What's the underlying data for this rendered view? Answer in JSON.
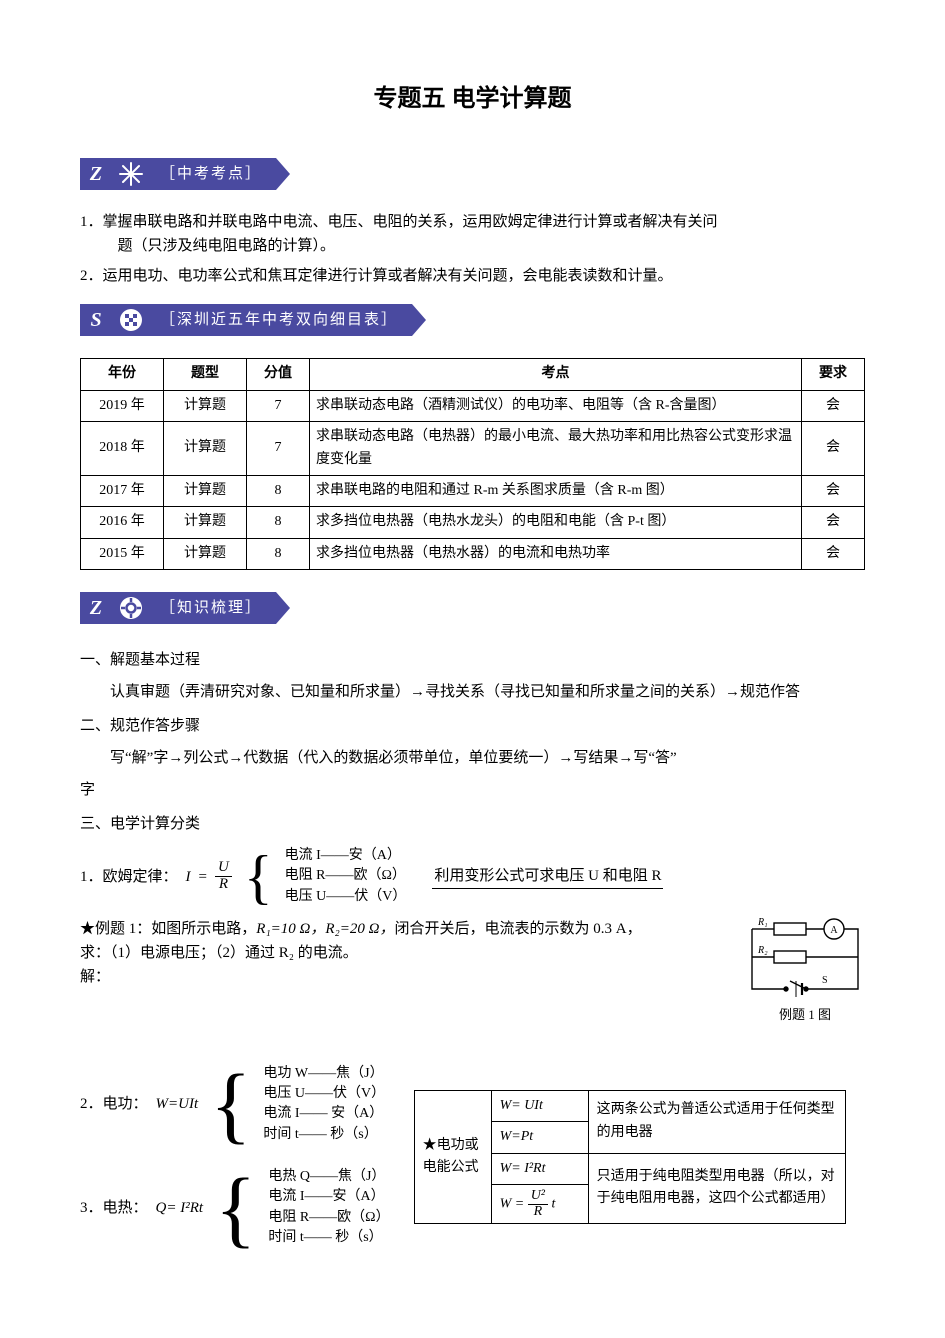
{
  "title": "专题五  电学计算题",
  "badge1": {
    "letter": "Z",
    "label": "［中考考点］"
  },
  "points": {
    "p1_num": "1．",
    "p1_a": "掌握串联电路和并联电路中电流、电压、电阻的关系，运用欧姆定律进行计算或者解决有关问",
    "p1_b": "题（只涉及纯电阻电路的计算）。",
    "p2_num": "2．",
    "p2": "运用电功、电功率公式和焦耳定律进行计算或者解决有关问题，会电能表读数和计量。"
  },
  "badge2": {
    "letter": "S",
    "label": "［深圳近五年中考双向细目表］"
  },
  "table": {
    "headers": [
      "年份",
      "题型",
      "分值",
      "考点",
      "要求"
    ],
    "rows": [
      {
        "year": "2019 年",
        "type": "计算题",
        "score": "7",
        "point": "求串联动态电路（酒精测试仪）的电功率、电阻等（含 R-含量图）",
        "req": "会"
      },
      {
        "year": "2018 年",
        "type": "计算题",
        "score": "7",
        "point": "求串联动态电路（电热器）的最小电流、最大热功率和用比热容公式变形求温度变化量",
        "req": "会"
      },
      {
        "year": "2017 年",
        "type": "计算题",
        "score": "8",
        "point": "求串联电路的电阻和通过 R-m 关系图求质量（含 R-m 图）",
        "req": "会"
      },
      {
        "year": "2016 年",
        "type": "计算题",
        "score": "8",
        "point": "求多挡位电热器（电热水龙头）的电阻和电能（含 P-t 图）",
        "req": "会"
      },
      {
        "year": "2015 年",
        "type": "计算题",
        "score": "8",
        "point": "求多挡位电热器（电热水器）的电流和电热功率",
        "req": "会"
      }
    ]
  },
  "badge3": {
    "letter": "Z",
    "label": "［知识梳理］"
  },
  "knowledge": {
    "h1": "一、解题基本过程",
    "h1_body": "认真审题（弄清研究对象、已知量和所求量）→寻找关系（寻找已知量和所求量之间的关系）→规范作答",
    "h2": "二、规范作答步骤",
    "h2_body_a": "写“解”字→列公式→代数据（代入的数据必须带单位，单位要统一）→写结果→写“答”",
    "h2_body_b": "字",
    "h3": "三、电学计算分类"
  },
  "ohm": {
    "lead": "1．欧姆定律：",
    "eq_lhs": "I",
    "eq_num": "U",
    "eq_den": "R",
    "defs": [
      "电流 I——安（A）",
      "电阻 R——欧（Ω）",
      "电压 U——伏（V）"
    ],
    "note": "利用变形公式可求电压 U 和电阻 R"
  },
  "example1": {
    "star": "★例题 1：",
    "body_a": "如图所示电路，",
    "r1": "R₁=10 Ω，",
    "r2": "R₂=20 Ω，",
    "body_b": "闭合开关后，电流表的示数为 0.3 A，",
    "q": "求：（1）电源电压；（2）通过 R₂ 的电流。",
    "solve": "解：",
    "caption": "例题 1 图",
    "labels": {
      "r1": "R₁",
      "r2": "R₂",
      "a": "A",
      "s": "S"
    }
  },
  "work": {
    "lead": "2．电功：",
    "eq": "W=UIt",
    "defs": [
      "电功 W——焦（J）",
      "电压 U——伏（V）",
      "电流 I—— 安（A）",
      "时间 t—— 秒（s）"
    ]
  },
  "heat": {
    "lead": "3．电热：",
    "eq": "Q= I²Rt",
    "defs": [
      "电热 Q——焦（J）",
      "电流 I——安（A）",
      "电阻 R——欧（Ω）",
      "时间 t—— 秒（s）"
    ]
  },
  "formula_table": {
    "rowhead": "★电功或电能公式",
    "r1_f": "W= UIt",
    "r1_2_note": "这两条公式为普适公式适用于任何类型的用电器",
    "r2_f": "W=Pt",
    "r3_f": "W= I²Rt",
    "r3_4_note": "只适用于纯电阻类型用电器（所以，对于纯电阻用电器，这四个公式都适用）",
    "r4_num": "U²",
    "r4_den": "R",
    "r4_lhs": "W =",
    "r4_tail": " t"
  },
  "colors": {
    "badge_bg": "#4a4aa0",
    "text": "#000000",
    "bg": "#ffffff"
  }
}
